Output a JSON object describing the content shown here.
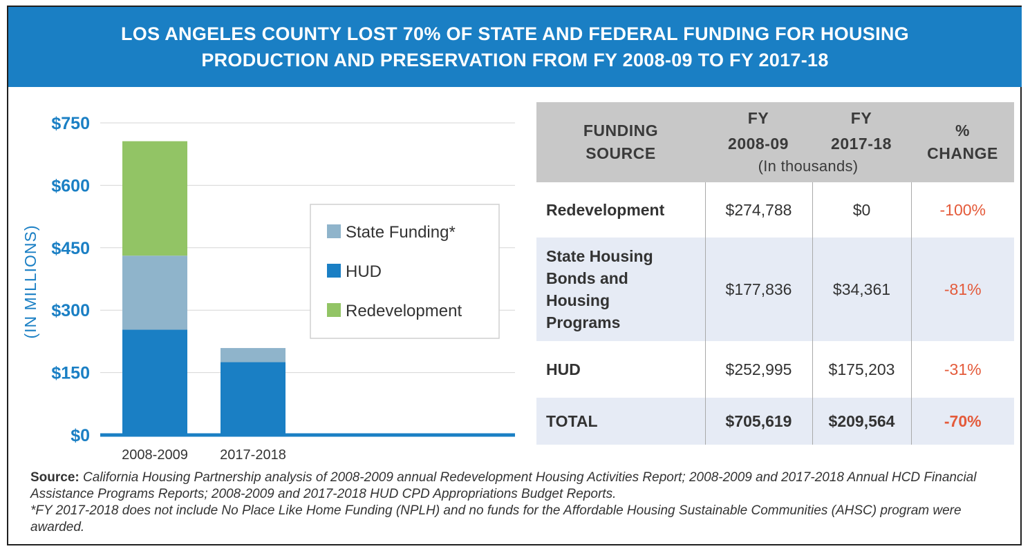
{
  "header": {
    "line1": "LOS ANGELES COUNTY LOST 70% OF STATE AND FEDERAL FUNDING FOR HOUSING",
    "line2": "PRODUCTION AND PRESERVATION FROM FY 2008-09 TO FY 2017-18"
  },
  "colors": {
    "header": "#1a7fc4",
    "hud": "#1a7fc4",
    "state": "#8fb4cb",
    "redevelopment": "#92c465",
    "axis_text": "#1a7fc4",
    "negative": "#e45a3a"
  },
  "chart_data": {
    "type": "bar",
    "stacked": true,
    "categories": [
      "2008-2009",
      "2017-2018"
    ],
    "series": [
      {
        "name": "HUD",
        "values": [
          253,
          175
        ],
        "color": "#1a7fc4"
      },
      {
        "name": "State Funding*",
        "values": [
          178,
          34
        ],
        "color": "#8fb4cb"
      },
      {
        "name": "Redevelopment",
        "values": [
          275,
          0
        ],
        "color": "#92c465"
      }
    ],
    "ylabel": "(IN MILLIONS)",
    "ylim": [
      0,
      750
    ],
    "yticks": [
      0,
      150,
      300,
      450,
      600,
      750
    ],
    "ytick_labels": [
      "$0",
      "$150",
      "$300",
      "$450",
      "$600",
      "$750"
    ],
    "legend_order": [
      "State Funding*",
      "HUD",
      "Redevelopment"
    ],
    "legend_position": "center-right",
    "grid": true
  },
  "table": {
    "headers": {
      "source": [
        "FUNDING",
        "SOURCE"
      ],
      "fy1": [
        "FY",
        "2008-09"
      ],
      "fy2": [
        "FY",
        "2017-18"
      ],
      "unit": "(In thousands)",
      "change": [
        "%",
        "CHANGE"
      ]
    },
    "rows": [
      {
        "source": [
          "Redevelopment"
        ],
        "fy1": "$274,788",
        "fy2": "$0",
        "change": "-100%"
      },
      {
        "source": [
          "State Housing",
          "Bonds and",
          "Housing",
          "Programs"
        ],
        "fy1": "$177,836",
        "fy2": "$34,361",
        "change": "-81%"
      },
      {
        "source": [
          "HUD"
        ],
        "fy1": "$252,995",
        "fy2": "$175,203",
        "change": "-31%"
      },
      {
        "source": [
          "TOTAL"
        ],
        "fy1": "$705,619",
        "fy2": "$209,564",
        "change": "-70%"
      }
    ]
  },
  "note": {
    "source_label": "Source:",
    "source_text": "California Housing Partnership analysis of 2008-2009 annual Redevelopment Housing Activities Report; 2008-2009 and 2017-2018 Annual HCD Financial Assistance Programs Reports; 2008-2009 and 2017-2018 HUD CPD Appropriations Budget Reports.",
    "footnote": "*FY 2017-2018 does not include No Place Like Home Funding (NPLH) and no funds for the Affordable Housing Sustainable Communities (AHSC) program were awarded."
  }
}
